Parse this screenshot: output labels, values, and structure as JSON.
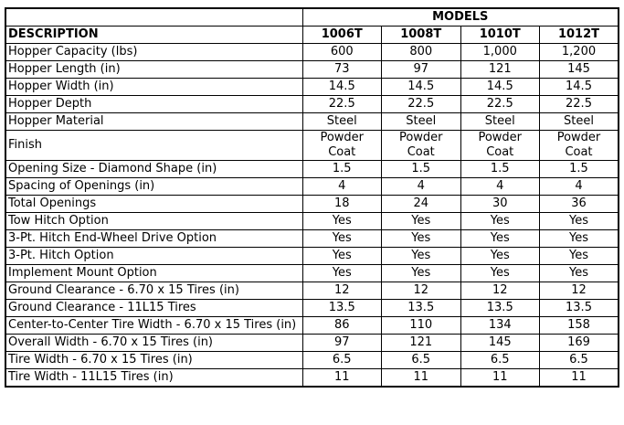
{
  "header": {
    "group": "MODELS",
    "description": "DESCRIPTION",
    "models": [
      "1006T",
      "1008T",
      "1010T",
      "1012T"
    ]
  },
  "rows": [
    {
      "label": "Hopper Capacity (lbs)",
      "values": [
        "600",
        "800",
        "1,000",
        "1,200"
      ]
    },
    {
      "label": "Hopper Length (in)",
      "values": [
        "73",
        "97",
        "121",
        "145"
      ]
    },
    {
      "label": "Hopper Width (in)",
      "values": [
        "14.5",
        "14.5",
        "14.5",
        "14.5"
      ]
    },
    {
      "label": "Hopper Depth",
      "values": [
        "22.5",
        "22.5",
        "22.5",
        "22.5"
      ]
    },
    {
      "label": "Hopper Material",
      "values": [
        "Steel",
        "Steel",
        "Steel",
        "Steel"
      ]
    },
    {
      "label": "Finish",
      "values": [
        "Powder Coat",
        "Powder Coat",
        "Powder Coat",
        "Powder Coat"
      ]
    },
    {
      "label": "Opening Size - Diamond Shape (in)",
      "values": [
        "1.5",
        "1.5",
        "1.5",
        "1.5"
      ]
    },
    {
      "label": "Spacing of Openings (in)",
      "values": [
        "4",
        "4",
        "4",
        "4"
      ]
    },
    {
      "label": "Total Openings",
      "values": [
        "18",
        "24",
        "30",
        "36"
      ]
    },
    {
      "label": "Tow Hitch Option",
      "values": [
        "Yes",
        "Yes",
        "Yes",
        "Yes"
      ]
    },
    {
      "label": "3-Pt. Hitch End-Wheel Drive Option",
      "values": [
        "Yes",
        "Yes",
        "Yes",
        "Yes"
      ]
    },
    {
      "label": "3-Pt. Hitch Option",
      "values": [
        "Yes",
        "Yes",
        "Yes",
        "Yes"
      ]
    },
    {
      "label": "Implement Mount Option",
      "values": [
        "Yes",
        "Yes",
        "Yes",
        "Yes"
      ]
    },
    {
      "label": "Ground Clearance - 6.70 x 15 Tires (in)",
      "values": [
        "12",
        "12",
        "12",
        "12"
      ]
    },
    {
      "label": "Ground Clearance - 11L15 Tires",
      "values": [
        "13.5",
        "13.5",
        "13.5",
        "13.5"
      ]
    },
    {
      "label": "Center-to-Center Tire Width - 6.70 x 15 Tires (in)",
      "values": [
        "86",
        "110",
        "134",
        "158"
      ]
    },
    {
      "label": "Overall Width - 6.70 x 15 Tires (in)",
      "values": [
        "97",
        "121",
        "145",
        "169"
      ]
    },
    {
      "label": "Tire Width - 6.70 x 15 Tires (in)",
      "values": [
        "6.5",
        "6.5",
        "6.5",
        "6.5"
      ]
    },
    {
      "label": "Tire Width - 11L15 Tires (in)",
      "values": [
        "11",
        "11",
        "11",
        "11"
      ]
    }
  ]
}
